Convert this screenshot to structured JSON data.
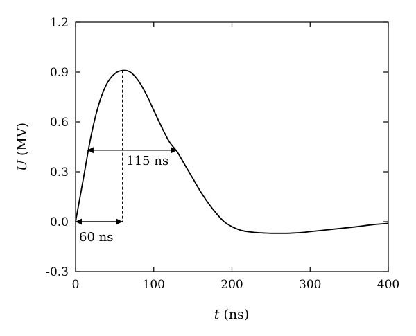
{
  "chart_data": {
    "type": "line",
    "xlabel_var": "t",
    "xlabel_unit": " (ns)",
    "ylabel_var": "U",
    "ylabel_unit": " (MV)",
    "xlim": [
      0,
      400
    ],
    "ylim": [
      -0.3,
      1.2
    ],
    "xticks": [
      0,
      100,
      200,
      300,
      400
    ],
    "xtick_labels": [
      "0",
      "100",
      "200",
      "300",
      "400"
    ],
    "yticks": [
      -0.3,
      0.0,
      0.3,
      0.6,
      0.9,
      1.2
    ],
    "ytick_labels": [
      "-0.3",
      "0.0",
      "0.3",
      "0.6",
      "0.9",
      "1.2"
    ],
    "grid": false,
    "series": [
      {
        "x": [
          0,
          10,
          20,
          30,
          40,
          50,
          60,
          70,
          80,
          90,
          100,
          110,
          120,
          130,
          140,
          150,
          160,
          170,
          180,
          190,
          200,
          210,
          220,
          230,
          240,
          250,
          260,
          270,
          280,
          290,
          300,
          320,
          340,
          360,
          380,
          400
        ],
        "y": [
          0.0,
          0.26,
          0.52,
          0.71,
          0.83,
          0.89,
          0.91,
          0.9,
          0.85,
          0.77,
          0.67,
          0.57,
          0.48,
          0.42,
          0.34,
          0.26,
          0.18,
          0.11,
          0.05,
          0.0,
          -0.03,
          -0.05,
          -0.06,
          -0.065,
          -0.068,
          -0.07,
          -0.07,
          -0.07,
          -0.068,
          -0.065,
          -0.06,
          -0.05,
          -0.04,
          -0.03,
          -0.018,
          -0.01
        ]
      }
    ],
    "annotations": [
      {
        "label": "60 ns",
        "x_start": 0,
        "x_end": 60,
        "y": 0.0
      },
      {
        "label": "115 ns",
        "x_start": 15,
        "x_end": 130,
        "y": 0.43
      }
    ],
    "peak": {
      "x": 60,
      "y": 0.91
    }
  }
}
